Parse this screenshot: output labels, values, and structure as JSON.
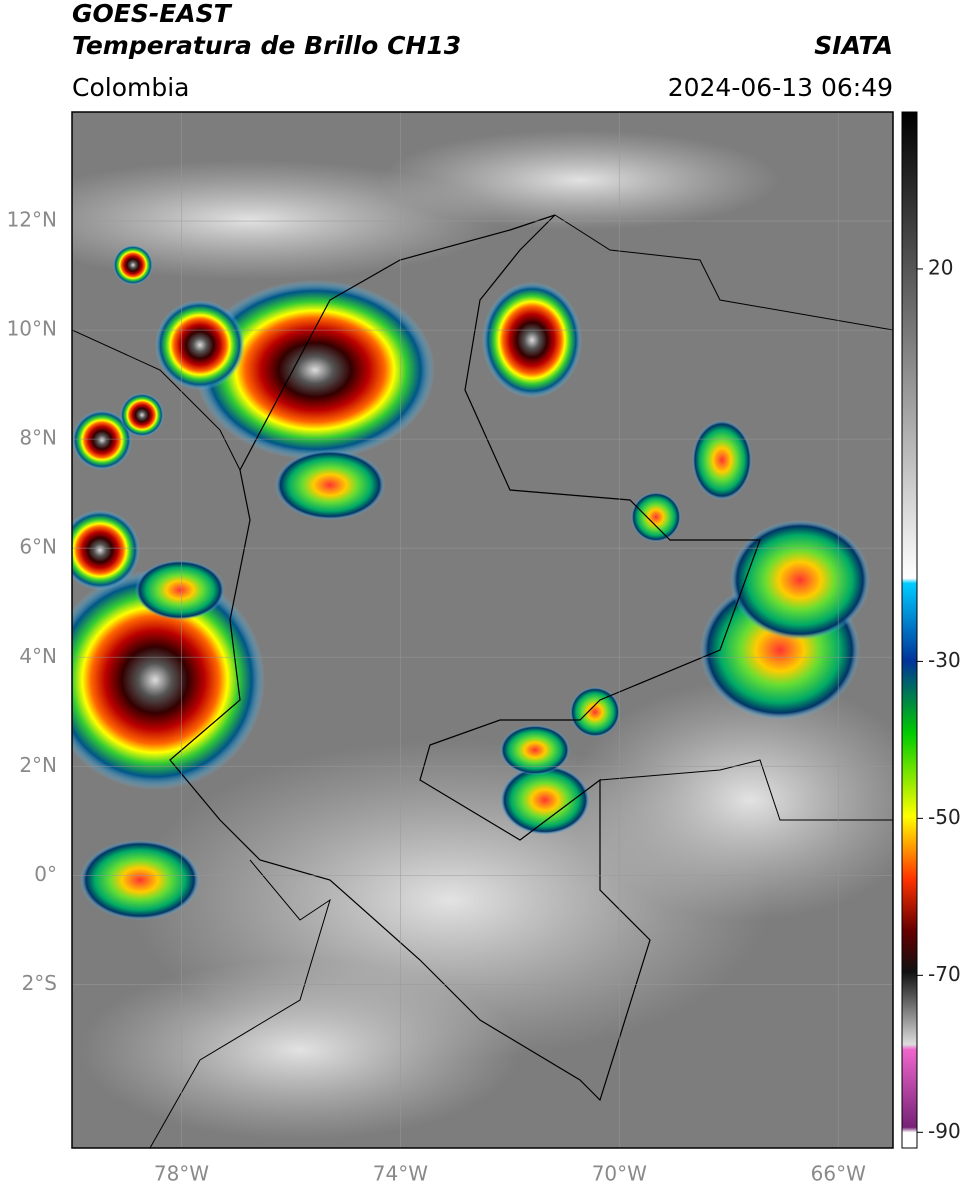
{
  "header": {
    "satellite": "GOES-EAST",
    "product": "Temperatura de Brillo CH13",
    "source": "SIATA",
    "region": "Colombia",
    "datetime": "2024-06-13 06:49"
  },
  "map": {
    "xlim": [
      -80,
      -65
    ],
    "ylim": [
      -5,
      14
    ],
    "xticks": [
      {
        "value": -78,
        "label": "78°W"
      },
      {
        "value": -74,
        "label": "74°W"
      },
      {
        "value": -70,
        "label": "70°W"
      },
      {
        "value": -66,
        "label": "66°W"
      }
    ],
    "yticks": [
      {
        "value": 12,
        "label": "12°N"
      },
      {
        "value": 10,
        "label": "10°N"
      },
      {
        "value": 8,
        "label": "8°N"
      },
      {
        "value": 6,
        "label": "6°N"
      },
      {
        "value": 4,
        "label": "4°N"
      },
      {
        "value": 2,
        "label": "2°N"
      },
      {
        "value": 0,
        "label": "0°"
      },
      {
        "value": -2,
        "label": "2°S"
      }
    ],
    "grid": true
  },
  "colorbar": {
    "lim": [
      -92,
      40
    ],
    "ticks": [
      20,
      -30,
      -50,
      -70,
      -90
    ]
  }
}
